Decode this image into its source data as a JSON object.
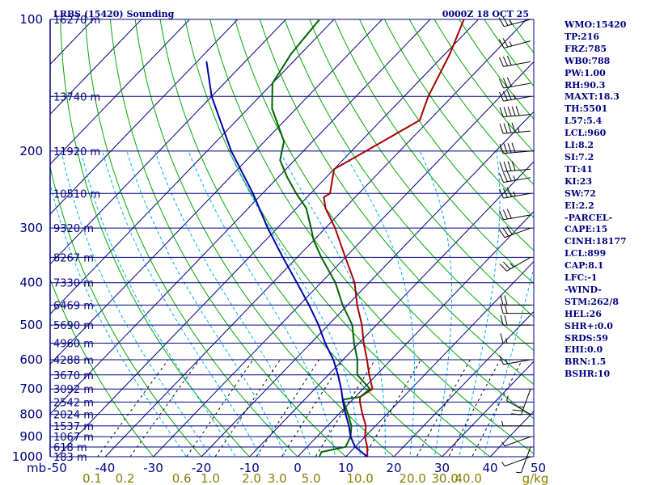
{
  "header": {
    "station": "LRBS (15420) Sounding",
    "time": "0000Z 18 OCT 25"
  },
  "stats": [
    "WMO:15420",
    "TP:216",
    "FRZ:785",
    "WB0:788",
    "PW:1.00",
    "RH:90.3",
    "MAXT:18.3",
    "TH:5501",
    "L57:5.4",
    "LCL:960",
    "LI:8.2",
    "SI:7.2",
    "TT:41",
    "KI:23",
    "SW:72",
    "EI:2.2",
    "-PARCEL-",
    "CAPE:15",
    "CINH:18177",
    "LCL:899",
    "CAP:8.1",
    "LFC:-1",
    "-WIND-",
    "STM:262/8",
    "HEL:26",
    "SHR+:0.0",
    "SRDS:59",
    "EHI:0.0",
    "BRN:1.5",
    "BSHR:10"
  ],
  "colors": {
    "isobar": "#000080",
    "isotherm": "#000080",
    "dry_adiabat": "#00aa00",
    "moist_adiabat": "#00aaff",
    "mixing_ratio": "#000000",
    "temperature": "#aa0000",
    "dewpoint": "#006400",
    "parcel": "#0000aa",
    "text": "#000080",
    "mixing_label": "#8b7d00"
  },
  "chart_data": {
    "type": "line",
    "title": "LRBS (15420) Sounding",
    "subtitle": "0000Z 18 OCT 25",
    "xlabel": "",
    "ylabel": "mb",
    "xunit": "g/kg",
    "log_y": true,
    "skewed_x": true,
    "ylim": [
      1000,
      100
    ],
    "xlim": [
      -50,
      50
    ],
    "pressure_ticks": [
      {
        "p": 100,
        "label": "100"
      },
      {
        "p": 200,
        "label": "200"
      },
      {
        "p": 300,
        "label": "300"
      },
      {
        "p": 400,
        "label": "400"
      },
      {
        "p": 500,
        "label": "500"
      },
      {
        "p": 600,
        "label": "600"
      },
      {
        "p": 700,
        "label": "700"
      },
      {
        "p": 800,
        "label": "800"
      },
      {
        "p": 900,
        "label": "900"
      },
      {
        "p": 1000,
        "label": "1000"
      }
    ],
    "mb_label": "mb",
    "temp_ticks": [
      "-50",
      "-40",
      "-30",
      "-20",
      "-10",
      "0",
      "10",
      "20",
      "30",
      "40",
      "50"
    ],
    "mixing_ticks": [
      "0.1",
      "0.2",
      "0.6",
      "1.0",
      "2.0",
      "3.0",
      "5.0",
      "10.0",
      "20.0",
      "30.0",
      "40.0",
      "g/kg"
    ],
    "height_labels": [
      {
        "p": 100,
        "label": "16270 m"
      },
      {
        "p": 150,
        "label": "13740 m"
      },
      {
        "p": 200,
        "label": "11920 m"
      },
      {
        "p": 250,
        "label": "10510 m"
      },
      {
        "p": 300,
        "label": "9320 m"
      },
      {
        "p": 350,
        "label": "8267 m"
      },
      {
        "p": 400,
        "label": "7330 m"
      },
      {
        "p": 450,
        "label": "6469 m"
      },
      {
        "p": 500,
        "label": "5690 m"
      },
      {
        "p": 550,
        "label": "4960 m"
      },
      {
        "p": 600,
        "label": "4288 m"
      },
      {
        "p": 650,
        "label": "3670 m"
      },
      {
        "p": 700,
        "label": "3092 m"
      },
      {
        "p": 750,
        "label": "2542 m"
      },
      {
        "p": 800,
        "label": "2024 m"
      },
      {
        "p": 850,
        "label": "1537 m"
      },
      {
        "p": 900,
        "label": "1067 m"
      },
      {
        "p": 950,
        "label": "618 m"
      },
      {
        "p": 1000,
        "label": "183 m"
      }
    ],
    "series": [
      {
        "key": "temperature",
        "points": [
          {
            "p": 1000,
            "t": 14.5
          },
          {
            "p": 950,
            "t": 12.5
          },
          {
            "p": 900,
            "t": 10.0
          },
          {
            "p": 850,
            "t": 8.0
          },
          {
            "p": 800,
            "t": 5.0
          },
          {
            "p": 750,
            "t": 2.0
          },
          {
            "p": 730,
            "t": 1.0
          },
          {
            "p": 700,
            "t": 2.0
          },
          {
            "p": 650,
            "t": -1.5
          },
          {
            "p": 600,
            "t": -5.0
          },
          {
            "p": 550,
            "t": -9.0
          },
          {
            "p": 500,
            "t": -13.0
          },
          {
            "p": 450,
            "t": -18.0
          },
          {
            "p": 400,
            "t": -23.0
          },
          {
            "p": 350,
            "t": -30.0
          },
          {
            "p": 300,
            "t": -38.0
          },
          {
            "p": 270,
            "t": -44.0
          },
          {
            "p": 255,
            "t": -46.5
          },
          {
            "p": 250,
            "t": -46.0
          },
          {
            "p": 220,
            "t": -50.0
          },
          {
            "p": 200,
            "t": -47.0
          },
          {
            "p": 170,
            "t": -42.0
          },
          {
            "p": 150,
            "t": -45.0
          },
          {
            "p": 120,
            "t": -49.0
          },
          {
            "p": 100,
            "t": -53.0
          }
        ]
      },
      {
        "key": "dewpoint",
        "points": [
          {
            "p": 1000,
            "t": 4.5
          },
          {
            "p": 975,
            "t": 4.0
          },
          {
            "p": 950,
            "t": 8.0
          },
          {
            "p": 900,
            "t": 7.0
          },
          {
            "p": 850,
            "t": 5.0
          },
          {
            "p": 800,
            "t": 2.0
          },
          {
            "p": 740,
            "t": -2.0
          },
          {
            "p": 730,
            "t": 1.0
          },
          {
            "p": 700,
            "t": 1.5
          },
          {
            "p": 650,
            "t": -4.0
          },
          {
            "p": 600,
            "t": -7.0
          },
          {
            "p": 550,
            "t": -11.0
          },
          {
            "p": 500,
            "t": -15.0
          },
          {
            "p": 450,
            "t": -21.0
          },
          {
            "p": 400,
            "t": -27.0
          },
          {
            "p": 350,
            "t": -35.0
          },
          {
            "p": 320,
            "t": -40.0
          },
          {
            "p": 300,
            "t": -43.0
          },
          {
            "p": 270,
            "t": -48.0
          },
          {
            "p": 250,
            "t": -53.0
          },
          {
            "p": 230,
            "t": -58.0
          },
          {
            "p": 210,
            "t": -63.0
          },
          {
            "p": 190,
            "t": -66.0
          },
          {
            "p": 160,
            "t": -75.0
          },
          {
            "p": 140,
            "t": -80.0
          },
          {
            "p": 120,
            "t": -82.0
          },
          {
            "p": 100,
            "t": -83.0
          }
        ]
      },
      {
        "key": "parcel",
        "points": [
          {
            "p": 1000,
            "t": 14.5
          },
          {
            "p": 950,
            "t": 10.0
          },
          {
            "p": 900,
            "t": 7.0
          },
          {
            "p": 850,
            "t": 4.5
          },
          {
            "p": 800,
            "t": 1.5
          },
          {
            "p": 750,
            "t": -1.5
          },
          {
            "p": 700,
            "t": -4.5
          },
          {
            "p": 650,
            "t": -8.0
          },
          {
            "p": 600,
            "t": -12.0
          },
          {
            "p": 550,
            "t": -17.0
          },
          {
            "p": 500,
            "t": -22.0
          },
          {
            "p": 450,
            "t": -28.0
          },
          {
            "p": 400,
            "t": -35.0
          },
          {
            "p": 350,
            "t": -43.0
          },
          {
            "p": 300,
            "t": -52.0
          },
          {
            "p": 250,
            "t": -62.0
          },
          {
            "p": 200,
            "t": -75.0
          },
          {
            "p": 150,
            "t": -90.0
          },
          {
            "p": 125,
            "t": -98.0
          }
        ]
      }
    ],
    "winds": [
      {
        "p": 1000,
        "dir": 250,
        "spd": 5
      },
      {
        "p": 950,
        "dir": 200,
        "spd": 5
      },
      {
        "p": 900,
        "dir": 250,
        "spd": 5
      },
      {
        "p": 850,
        "dir": 270,
        "spd": 5
      },
      {
        "p": 800,
        "dir": 300,
        "spd": 5
      },
      {
        "p": 700,
        "dir": 200,
        "spd": 25
      },
      {
        "p": 600,
        "dir": 260,
        "spd": 15
      },
      {
        "p": 550,
        "dir": 270,
        "spd": 15
      },
      {
        "p": 500,
        "dir": 270,
        "spd": 20
      },
      {
        "p": 470,
        "dir": 270,
        "spd": 20
      },
      {
        "p": 450,
        "dir": 270,
        "spd": 20
      },
      {
        "p": 350,
        "dir": 240,
        "spd": 25
      },
      {
        "p": 300,
        "dir": 250,
        "spd": 30
      },
      {
        "p": 280,
        "dir": 260,
        "spd": 30
      },
      {
        "p": 250,
        "dir": 260,
        "spd": 35
      },
      {
        "p": 230,
        "dir": 260,
        "spd": 35
      },
      {
        "p": 220,
        "dir": 265,
        "spd": 40
      },
      {
        "p": 200,
        "dir": 265,
        "spd": 40
      },
      {
        "p": 180,
        "dir": 265,
        "spd": 45
      },
      {
        "p": 165,
        "dir": 265,
        "spd": 50
      },
      {
        "p": 150,
        "dir": 260,
        "spd": 35
      },
      {
        "p": 140,
        "dir": 260,
        "spd": 30
      },
      {
        "p": 125,
        "dir": 260,
        "spd": 30
      },
      {
        "p": 112,
        "dir": 255,
        "spd": 25
      },
      {
        "p": 100,
        "dir": 255,
        "spd": 25
      }
    ]
  }
}
